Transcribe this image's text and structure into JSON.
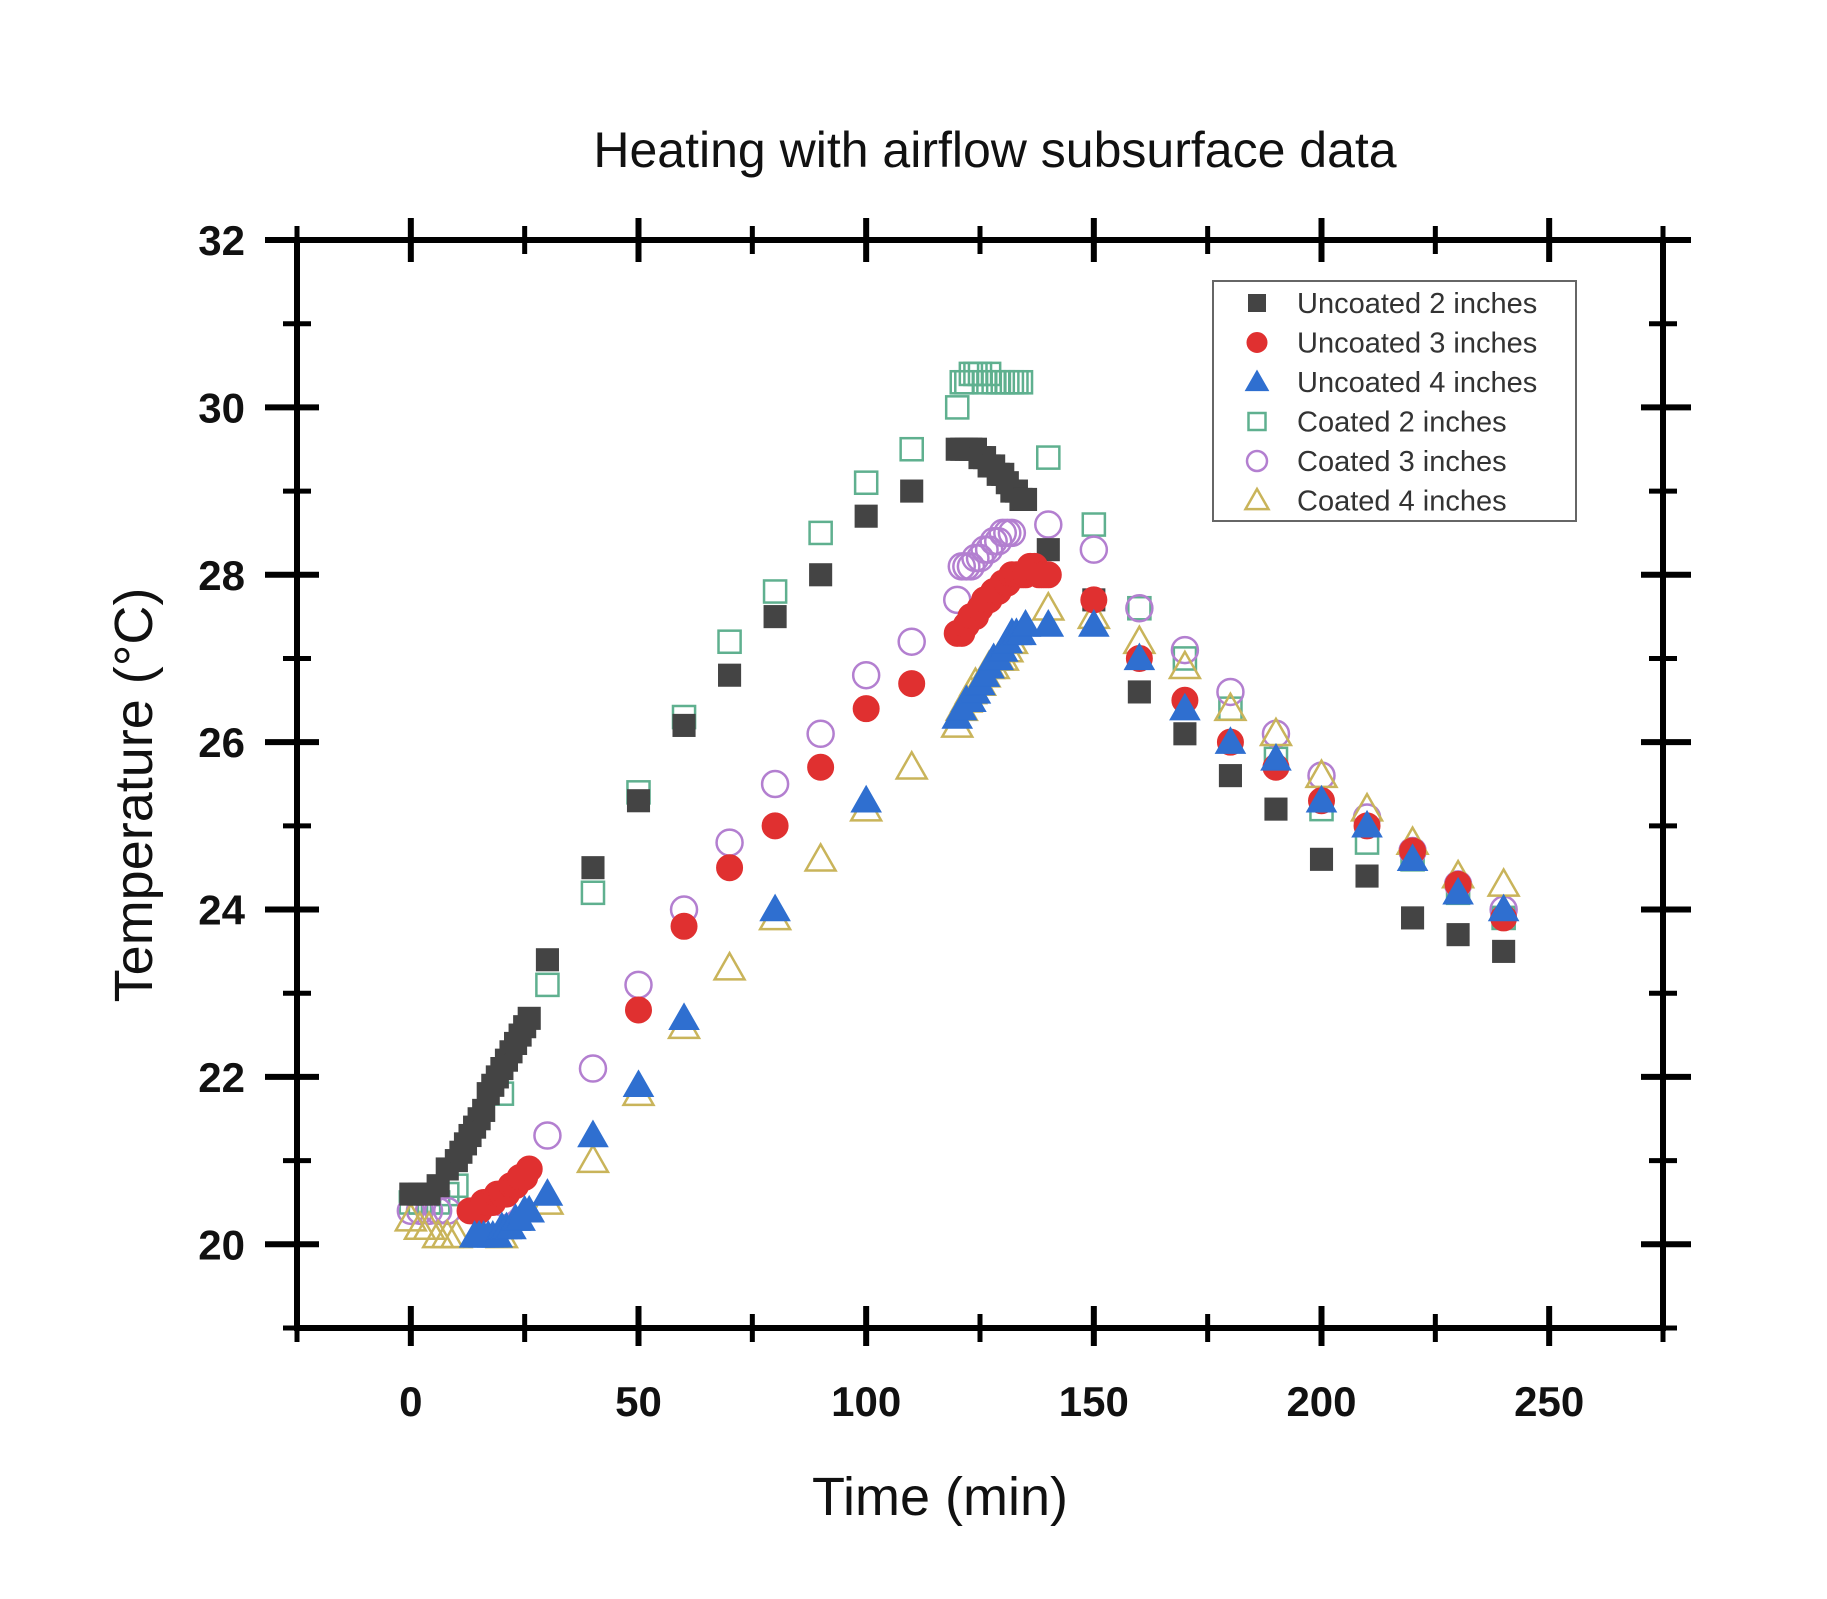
{
  "chart_data": {
    "type": "scatter",
    "title": "Heating with airflow subsurface data",
    "xlabel": "Time (min)",
    "ylabel": "Temperature (°C)",
    "xlim": [
      -25,
      275
    ],
    "ylim": [
      19,
      32
    ],
    "xticks": [
      0,
      50,
      100,
      150,
      200,
      250
    ],
    "yticks": [
      20,
      22,
      24,
      26,
      28,
      30,
      32
    ],
    "legend_position": "top-right",
    "grid": false,
    "series": [
      {
        "name": "Uncoated 2 inches",
        "marker": "square",
        "filled": true,
        "color": "#444444",
        "x": [
          0,
          2,
          4,
          6,
          8,
          10,
          11,
          12,
          13,
          14,
          15,
          16,
          17,
          18,
          19,
          20,
          21,
          22,
          23,
          24,
          25,
          26,
          30,
          40,
          50,
          60,
          70,
          80,
          90,
          100,
          110,
          120,
          121,
          122,
          123,
          124,
          125,
          126,
          127,
          128,
          129,
          130,
          131,
          132,
          133,
          134,
          135,
          140,
          150,
          160,
          170,
          180,
          190,
          200,
          210,
          220,
          230,
          240
        ],
        "y": [
          20.6,
          20.6,
          20.6,
          20.7,
          20.9,
          21.0,
          21.1,
          21.2,
          21.3,
          21.4,
          21.5,
          21.6,
          21.8,
          21.9,
          22.0,
          22.1,
          22.2,
          22.3,
          22.4,
          22.5,
          22.6,
          22.7,
          23.4,
          24.5,
          25.3,
          26.2,
          26.8,
          27.5,
          28.0,
          28.7,
          29.0,
          29.5,
          29.5,
          29.5,
          29.5,
          29.5,
          29.4,
          29.4,
          29.3,
          29.3,
          29.2,
          29.2,
          29.1,
          29.0,
          29.0,
          28.9,
          28.9,
          28.3,
          27.7,
          26.6,
          26.1,
          25.6,
          25.2,
          24.6,
          24.4,
          23.9,
          23.7,
          23.5
        ]
      },
      {
        "name": "Uncoated 3 inches",
        "marker": "circle",
        "filled": true,
        "color": "#e03030",
        "x": [
          13,
          14,
          15,
          16,
          17,
          18,
          19,
          20,
          21,
          22,
          23,
          24,
          25,
          26,
          50,
          60,
          70,
          80,
          90,
          100,
          110,
          120,
          121,
          122,
          123,
          124,
          125,
          126,
          127,
          128,
          129,
          130,
          131,
          132,
          133,
          134,
          135,
          136,
          137,
          138,
          139,
          140,
          150,
          160,
          170,
          180,
          190,
          200,
          210,
          220,
          230,
          240
        ],
        "y": [
          20.4,
          20.4,
          20.4,
          20.5,
          20.5,
          20.5,
          20.6,
          20.6,
          20.6,
          20.7,
          20.7,
          20.8,
          20.8,
          20.9,
          22.8,
          23.8,
          24.5,
          25.0,
          25.7,
          26.4,
          26.7,
          27.3,
          27.3,
          27.4,
          27.5,
          27.5,
          27.6,
          27.7,
          27.7,
          27.8,
          27.8,
          27.9,
          27.9,
          28.0,
          28.0,
          28.0,
          28.0,
          28.1,
          28.1,
          28.0,
          28.0,
          28.0,
          27.7,
          27.0,
          26.5,
          26.0,
          25.7,
          25.3,
          25.0,
          24.7,
          24.3,
          23.9
        ]
      },
      {
        "name": "Uncoated 4 inches",
        "marker": "triangle",
        "filled": true,
        "color": "#2f6fd0",
        "x": [
          14,
          15,
          16,
          17,
          18,
          19,
          20,
          21,
          22,
          23,
          24,
          25,
          26,
          30,
          40,
          50,
          60,
          80,
          100,
          120,
          121,
          122,
          123,
          124,
          125,
          126,
          127,
          128,
          129,
          130,
          131,
          132,
          133,
          134,
          135,
          140,
          150,
          160,
          170,
          180,
          190,
          200,
          210,
          220,
          230,
          240
        ],
        "y": [
          20.1,
          20.1,
          20.1,
          20.1,
          20.1,
          20.1,
          20.2,
          20.2,
          20.2,
          20.3,
          20.3,
          20.4,
          20.4,
          20.6,
          21.3,
          21.9,
          22.7,
          24.0,
          25.3,
          26.3,
          26.4,
          26.5,
          26.5,
          26.6,
          26.7,
          26.8,
          26.9,
          27.0,
          27.0,
          27.1,
          27.2,
          27.3,
          27.3,
          27.3,
          27.4,
          27.4,
          27.4,
          27.0,
          26.4,
          26.0,
          25.8,
          25.3,
          25.0,
          24.6,
          24.2,
          24.0
        ]
      },
      {
        "name": "Coated 2 inches",
        "marker": "square",
        "filled": false,
        "color": "#5fb08f",
        "x": [
          0,
          2,
          4,
          6,
          8,
          10,
          20,
          30,
          40,
          50,
          60,
          70,
          80,
          90,
          100,
          110,
          120,
          121,
          122,
          123,
          124,
          125,
          126,
          127,
          128,
          129,
          130,
          131,
          132,
          133,
          134,
          140,
          150,
          160,
          170,
          180,
          190,
          200,
          210,
          220,
          230,
          240
        ],
        "y": [
          20.5,
          20.5,
          20.5,
          20.5,
          20.6,
          20.7,
          21.8,
          23.1,
          24.2,
          25.4,
          26.3,
          27.2,
          27.8,
          28.5,
          29.1,
          29.5,
          30.0,
          30.3,
          30.3,
          30.4,
          30.4,
          30.4,
          30.3,
          30.4,
          30.3,
          30.3,
          30.3,
          30.3,
          30.3,
          30.3,
          30.3,
          29.4,
          28.6,
          27.6,
          27.0,
          26.4,
          25.8,
          25.2,
          24.8,
          24.6,
          24.2,
          23.9
        ]
      },
      {
        "name": "Coated 3 inches",
        "marker": "circle",
        "filled": false,
        "color": "#b37fd0",
        "x": [
          0,
          2,
          4,
          6,
          8,
          20,
          30,
          40,
          50,
          60,
          70,
          80,
          90,
          100,
          110,
          120,
          121,
          122,
          123,
          124,
          125,
          126,
          127,
          128,
          129,
          130,
          131,
          132,
          140,
          150,
          160,
          170,
          180,
          190,
          200,
          210,
          220,
          230,
          240
        ],
        "y": [
          20.4,
          20.4,
          20.4,
          20.4,
          20.4,
          20.5,
          21.3,
          22.1,
          23.1,
          24.0,
          24.8,
          25.5,
          26.1,
          26.8,
          27.2,
          27.7,
          28.1,
          28.1,
          28.1,
          28.2,
          28.2,
          28.3,
          28.3,
          28.4,
          28.4,
          28.5,
          28.5,
          28.5,
          28.6,
          28.3,
          27.6,
          27.1,
          26.6,
          26.1,
          25.6,
          25.1,
          24.7,
          24.3,
          24.0
        ]
      },
      {
        "name": "Coated 4 inches",
        "marker": "triangle",
        "filled": false,
        "color": "#c9b45a",
        "x": [
          0,
          2,
          4,
          6,
          8,
          10,
          20,
          30,
          40,
          50,
          60,
          70,
          80,
          90,
          100,
          110,
          120,
          121,
          122,
          123,
          124,
          125,
          126,
          127,
          128,
          129,
          130,
          131,
          132,
          140,
          150,
          160,
          170,
          180,
          190,
          200,
          210,
          220,
          230,
          240
        ],
        "y": [
          20.3,
          20.2,
          20.2,
          20.1,
          20.1,
          20.1,
          20.1,
          20.5,
          21.0,
          21.8,
          22.6,
          23.3,
          23.9,
          24.6,
          25.2,
          25.7,
          26.2,
          26.4,
          26.5,
          26.6,
          26.7,
          26.7,
          26.8,
          26.9,
          26.9,
          27.0,
          27.0,
          27.1,
          27.2,
          27.6,
          27.5,
          27.2,
          26.9,
          26.4,
          26.1,
          25.6,
          25.2,
          24.8,
          24.4,
          24.3
        ]
      }
    ]
  }
}
